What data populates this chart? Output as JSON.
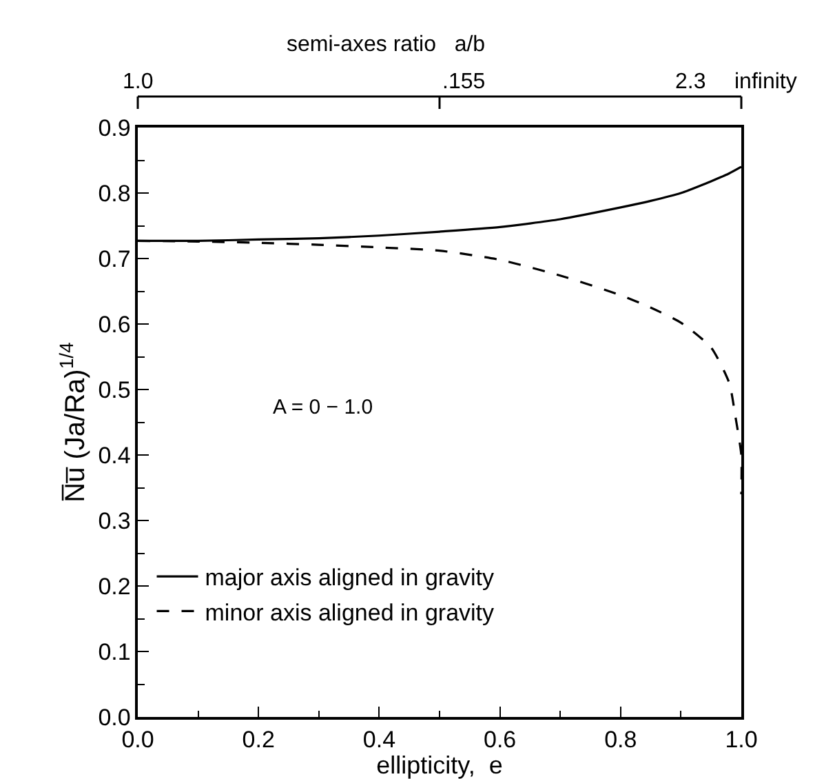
{
  "chart_data": {
    "type": "line",
    "x": [
      0,
      0.1,
      0.2,
      0.3,
      0.4,
      0.5,
      0.6,
      0.7,
      0.8,
      0.85,
      0.9,
      0.95,
      0.98,
      1.0
    ],
    "series": [
      {
        "name": "major axis aligned in gravity",
        "color": "#000000",
        "line_style": "solid",
        "values": [
          0.727,
          0.727,
          0.729,
          0.731,
          0.735,
          0.741,
          0.748,
          0.76,
          0.778,
          0.788,
          0.8,
          0.818,
          0.83,
          0.84
        ]
      },
      {
        "name": "minor axis aligned in gravity",
        "color": "#000000",
        "line_style": "dashed",
        "x": [
          0,
          0.1,
          0.2,
          0.3,
          0.4,
          0.5,
          0.6,
          0.7,
          0.8,
          0.85,
          0.9,
          0.95,
          0.98,
          0.99,
          1.0,
          1.0
        ],
        "values": [
          0.727,
          0.726,
          0.724,
          0.721,
          0.717,
          0.712,
          0.698,
          0.674,
          0.644,
          0.625,
          0.602,
          0.564,
          0.51,
          0.46,
          0.4,
          0.34
        ]
      }
    ],
    "xlabel": "ellipticity,  e",
    "ylabel": "N̅u̅ (Ja/Ra)$^{1/4}$",
    "xlim": [
      0,
      1
    ],
    "xticks": [
      {
        "value": 0,
        "label": "0.0"
      },
      0.2,
      0.4,
      0.6,
      0.8,
      {
        "value": 1,
        "label": "1.0"
      }
    ],
    "ylim": [
      0,
      0.9
    ],
    "yticks": [
      {
        "value": 0,
        "label": "0.0"
      },
      0.1,
      0.2,
      0.3,
      0.4,
      0.5,
      0.6,
      0.7,
      0.8,
      0.9
    ],
    "annotations": [
      "A = 0 − 1.0",
      "semi-axes ratio   a/b",
      "1.0",
      ".155",
      "2.3",
      "infinity"
    ],
    "legend": "bottom left",
    "grid": false,
    "marker": "none"
  }
}
